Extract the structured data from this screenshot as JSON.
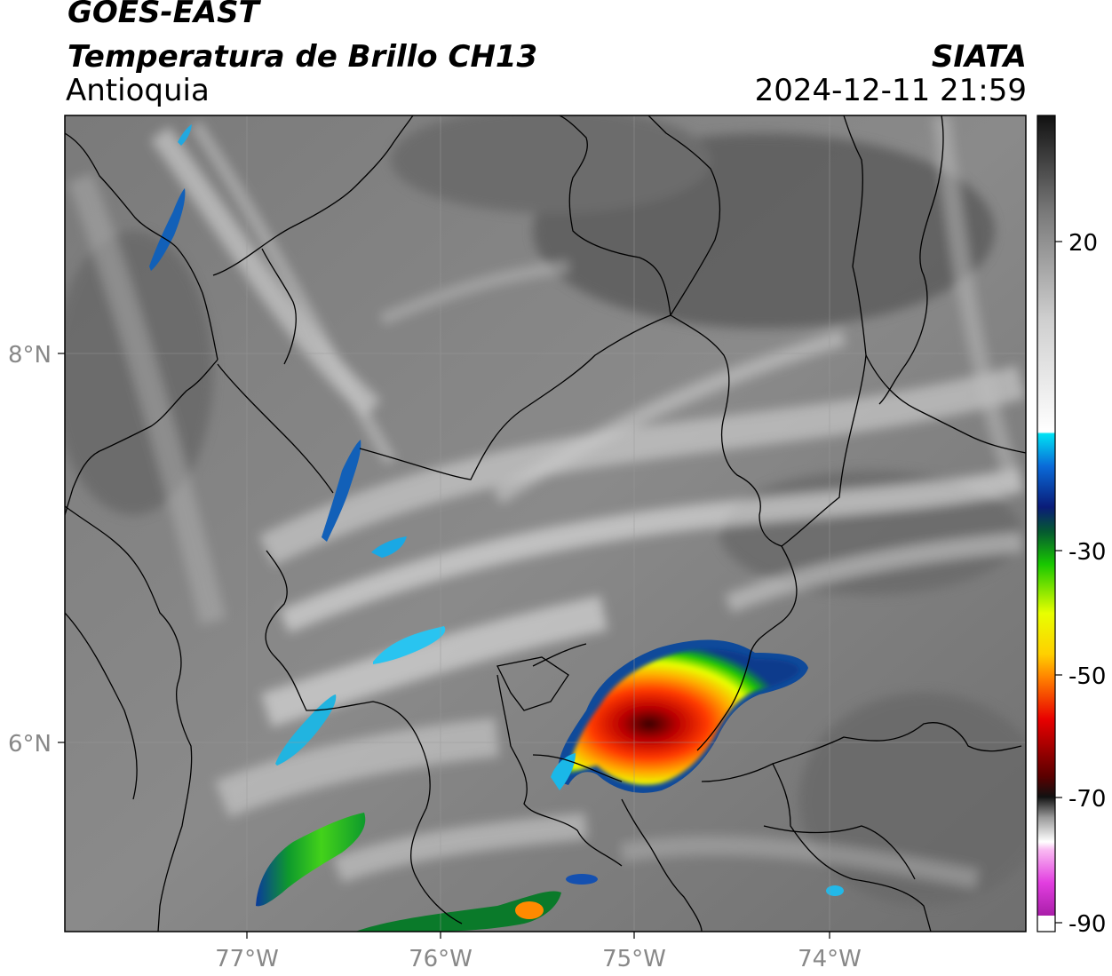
{
  "header": {
    "satellite": "GOES-EAST",
    "product": "Temperatura de Brillo CH13",
    "region": "Antioquia",
    "agency": "SIATA",
    "timestamp": "2024-12-11 21:59"
  },
  "axes": {
    "lon_ticks": [
      "77°W",
      "76°W",
      "75°W",
      "74°W"
    ],
    "lat_ticks": [
      "8°N",
      "6°N"
    ]
  },
  "colorbar": {
    "tick_labels": [
      "20",
      "-30",
      "-50",
      "-70",
      "-90"
    ],
    "colors": [
      "#8e0f8e",
      "#e23ee0",
      "#d8c4d0",
      "#111111",
      "#d40000",
      "#ff7f00",
      "#ffff00",
      "#00c000",
      "#0a2f8c",
      "#00d8f0",
      "#ffffff",
      "#666666",
      "#111111"
    ]
  }
}
